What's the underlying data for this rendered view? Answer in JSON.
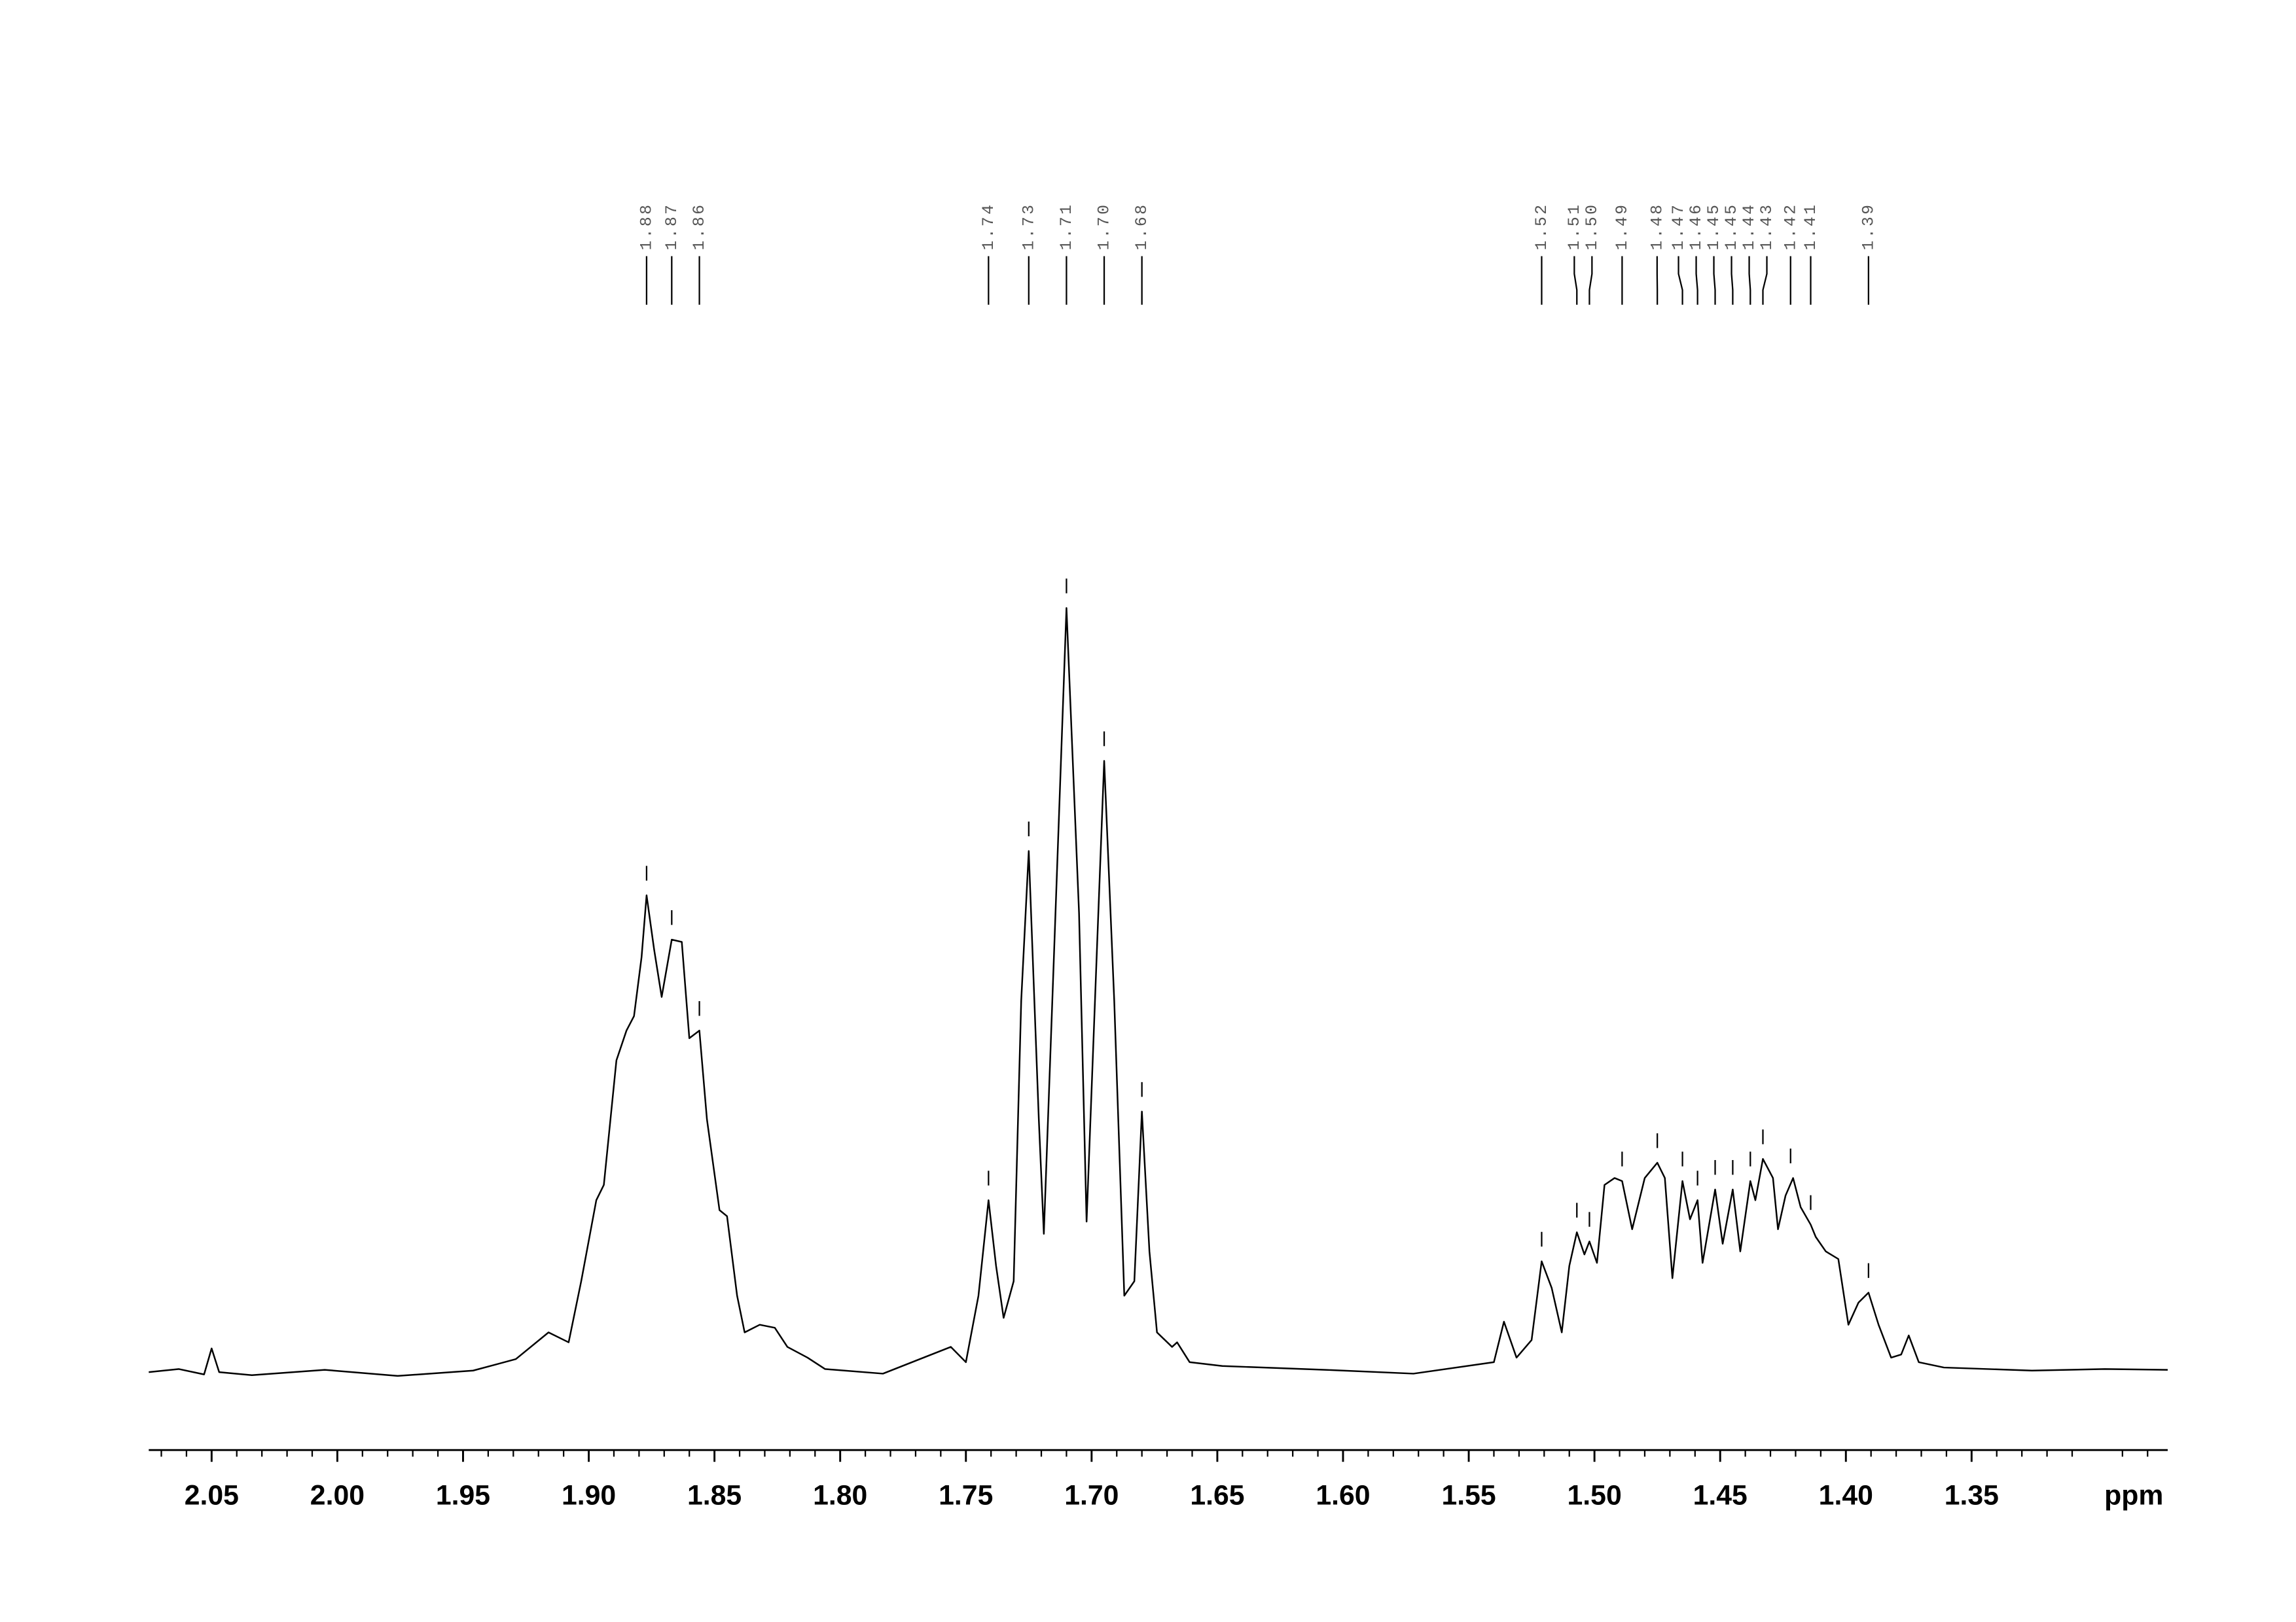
{
  "chart_data": {
    "type": "nmr",
    "x_label": "ppm",
    "xlim": [
      2.075,
      1.272
    ],
    "ylim": [
      -10.2,
      150
    ],
    "xticks": [
      2.05,
      {
        "value": 2,
        "label": "2.00"
      },
      1.95,
      {
        "value": 1.9,
        "label": "1.90"
      },
      1.85,
      {
        "value": 1.8,
        "label": "1.80"
      },
      1.75,
      {
        "value": 1.7,
        "label": "1.70"
      },
      1.65,
      {
        "value": 1.6,
        "label": "1.60"
      },
      1.55,
      {
        "value": 1.5,
        "label": "1.50"
      },
      1.45,
      {
        "value": 1.4,
        "label": "1.40"
      },
      1.35
    ],
    "color": "#000000",
    "x": [
      2.075,
      2.063,
      2.053,
      2.05,
      2.047,
      2.034,
      2.005,
      1.976,
      1.946,
      1.929,
      1.916,
      1.908,
      1.903,
      1.897,
      1.894,
      1.889,
      1.885,
      1.882,
      1.879,
      1.877,
      1.874,
      1.871,
      1.867,
      1.863,
      1.86,
      1.856,
      1.853,
      1.848,
      1.845,
      1.841,
      1.838,
      1.832,
      1.826,
      1.821,
      1.813,
      1.806,
      1.783,
      1.756,
      1.75,
      1.745,
      1.741,
      1.738,
      1.735,
      1.731,
      1.728,
      1.725,
      1.721,
      1.719,
      1.715,
      1.71,
      1.705,
      1.702,
      1.698,
      1.695,
      1.691,
      1.687,
      1.683,
      1.68,
      1.677,
      1.674,
      1.668,
      1.666,
      1.661,
      1.648,
      1.607,
      1.572,
      1.54,
      1.536,
      1.531,
      1.525,
      1.521,
      1.517,
      1.513,
      1.51,
      1.507,
      1.504,
      1.502,
      1.499,
      1.496,
      1.492,
      1.489,
      1.485,
      1.48,
      1.475,
      1.472,
      1.469,
      1.465,
      1.462,
      1.459,
      1.457,
      1.452,
      1.449,
      1.445,
      1.442,
      1.438,
      1.436,
      1.433,
      1.429,
      1.427,
      1.424,
      1.421,
      1.418,
      1.414,
      1.412,
      1.408,
      1.403,
      1.399,
      1.395,
      1.391,
      1.387,
      1.382,
      1.378,
      1.375,
      1.371,
      1.361,
      1.326,
      1.297,
      1.272
    ],
    "values": [
      0,
      0.4,
      -0.3,
      3.1,
      0,
      -0.4,
      0.3,
      -0.5,
      0.2,
      1.7,
      5.2,
      3.9,
      11.9,
      22.5,
      24.5,
      40.8,
      44.7,
      46.6,
      54.3,
      62.4,
      55.3,
      49.1,
      56.6,
      56.3,
      43.7,
      44.7,
      33.1,
      21.2,
      20.4,
      10.0,
      5.2,
      6.2,
      5.8,
      3.3,
      1.9,
      0.4,
      -0.2,
      3.3,
      1.3,
      10.0,
      22.5,
      13.9,
      7.1,
      11.9,
      48.6,
      68.2,
      33.1,
      18.1,
      54.3,
      100,
      60.1,
      19.7,
      54.3,
      80.0,
      48.6,
      10.0,
      11.9,
      34.1,
      15.8,
      5.2,
      3.3,
      3.9,
      1.3,
      0.8,
      0.3,
      -0.2,
      1.3,
      6.6,
      1.9,
      4.2,
      14.5,
      11.0,
      5.2,
      13.9,
      18.3,
      15.4,
      17.1,
      14.3,
      24.5,
      25.4,
      25.0,
      18.7,
      25.4,
      27.4,
      25.4,
      12.3,
      25.0,
      20.0,
      22.5,
      14.3,
      23.9,
      16.8,
      23.9,
      15.8,
      25.0,
      22.5,
      27.9,
      25.4,
      18.7,
      23.1,
      25.4,
      21.6,
      19.3,
      17.7,
      15.8,
      14.8,
      6.2,
      9.1,
      10.4,
      6.2,
      1.9,
      2.3,
      4.8,
      1.3,
      0.6,
      0.2,
      0.4,
      0.3
    ],
    "peaks": [
      1.877,
      1.867,
      1.856,
      1.741,
      1.725,
      1.71,
      1.695,
      1.68,
      1.521,
      1.507,
      1.502,
      1.489,
      1.475,
      1.465,
      1.459,
      1.452,
      1.445,
      1.438,
      1.433,
      1.422,
      1.414,
      1.391
    ],
    "peak_labels": [
      "1.88",
      "1.87",
      "1.86",
      "1.74",
      "1.73",
      "1.71",
      "1.70",
      "1.68",
      "1.52",
      "1.51",
      "1.50",
      "1.49",
      "1.48",
      "1.47",
      "1.46",
      "1.45",
      "1.45",
      "1.44",
      "1.43",
      "1.42",
      "1.41",
      "1.39"
    ]
  }
}
